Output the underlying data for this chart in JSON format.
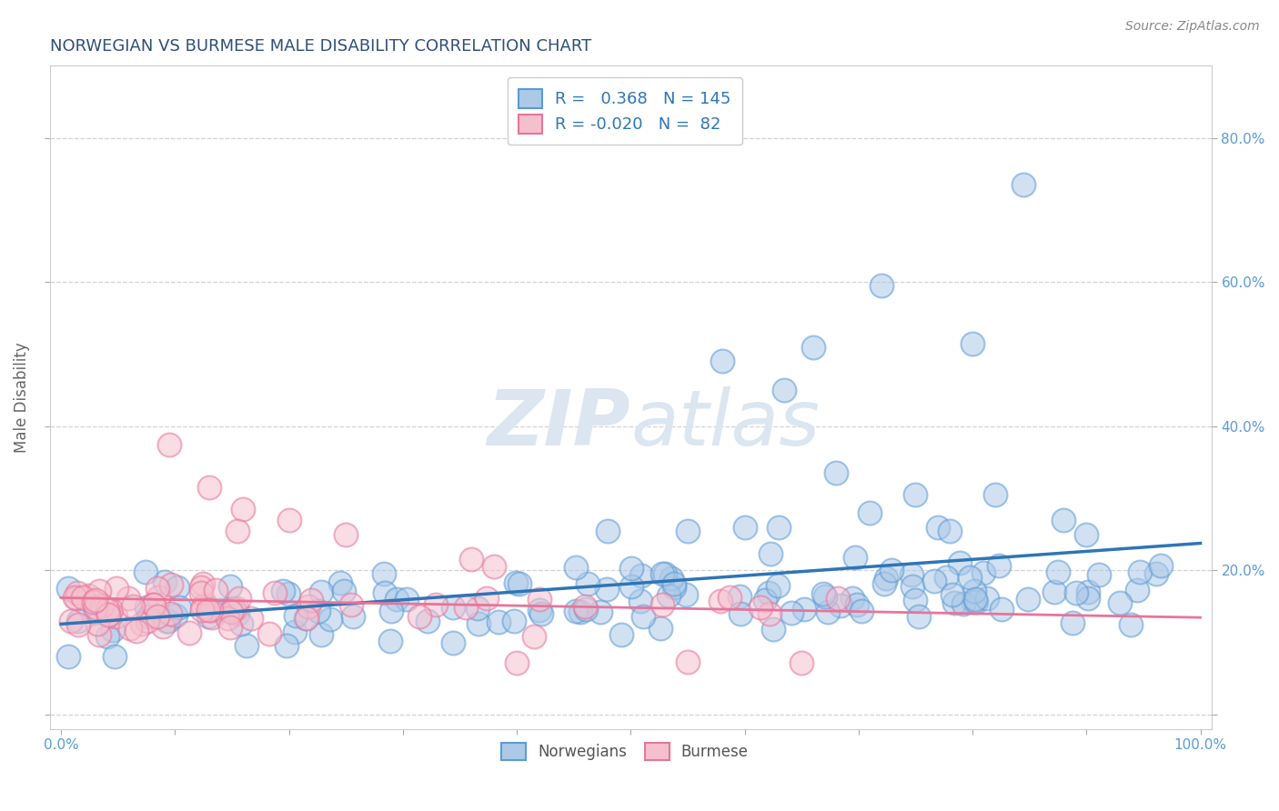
{
  "title": "NORWEGIAN VS BURMESE MALE DISABILITY CORRELATION CHART",
  "source_text": "Source: ZipAtlas.com",
  "xlabel": "",
  "ylabel": "Male Disability",
  "xlim": [
    -0.01,
    1.01
  ],
  "ylim": [
    -0.02,
    0.9
  ],
  "xticks": [
    0.0,
    0.1,
    0.2,
    0.3,
    0.4,
    0.5,
    0.6,
    0.7,
    0.8,
    0.9,
    1.0
  ],
  "yticks": [
    0.0,
    0.2,
    0.4,
    0.6,
    0.8
  ],
  "norwegian_R": 0.368,
  "norwegian_N": 145,
  "burmese_R": -0.02,
  "burmese_N": 82,
  "norwegian_color": "#adc9e8",
  "norwegian_edge_color": "#5b9bd5",
  "burmese_color": "#f5c0ce",
  "burmese_edge_color": "#e8749a",
  "norwegian_line_color": "#2e75b6",
  "burmese_line_color": "#e8749a",
  "background_color": "#ffffff",
  "grid_color": "#c8c8c8",
  "watermark_color": "#dce6f1",
  "title_color": "#2e4f7a",
  "axis_label_color": "#666666",
  "tick_color": "#5b9bd5",
  "legend_label_color": "#2e75b6",
  "seed": 99
}
